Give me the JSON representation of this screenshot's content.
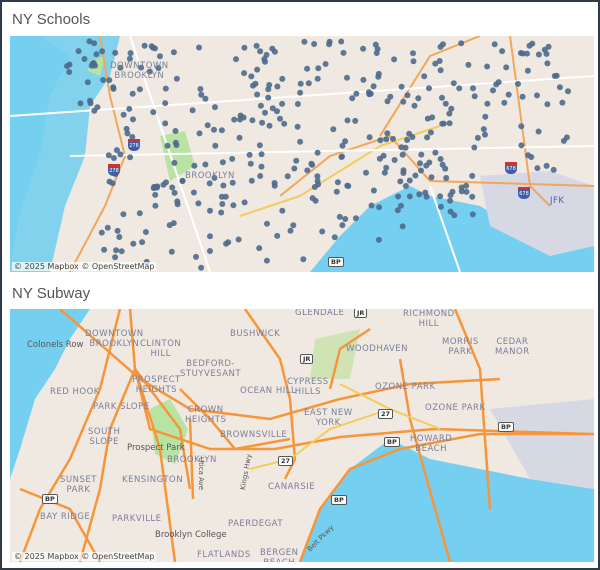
{
  "schools": {
    "title": "NY Schools",
    "attribution": "© 2025 Mapbox © OpenStreetMap",
    "marker_color": "#4d6a8c",
    "labels": {
      "downtown": "DOWNTOWN\nBROOKLYN",
      "brooklyn": "BROOKLYN",
      "jfk": "JFK"
    },
    "shields": {
      "i278": "278",
      "i678": "678",
      "bp": "BP"
    }
  },
  "subway": {
    "title": "NY Subway",
    "attribution": "© 2025 Mapbox © OpenStreetMap",
    "line_color": "#f7953b",
    "labels": {
      "glendale": "GLENDALE",
      "richmond_hill": "RICHMOND\nHILL",
      "bushwick": "BUSHWICK",
      "downtown": "DOWNTOWN\nBROOKLYN",
      "colonels_row": "Colonels Row",
      "clinton_hill": "CLINTON\nHILL",
      "woodhaven": "WOODHAVEN",
      "morris_park": "MORRIS\nPARK",
      "cedar_manor": "CEDAR\nMANOR",
      "bed_stuy": "BEDFORD-\nSTUYVESANT",
      "prospect_heights": "PROSPECT\nHEIGHTS",
      "cypress_hills": "CYPRESS\nHILLS",
      "ocean_hill": "OCEAN HILL",
      "ozone_park_1": "OZONE PARK",
      "red_hook": "RED HOOK",
      "ozone_park_2": "OZONE PARK",
      "park_slope": "PARK SLOPE",
      "crown_heights": "CROWN\nHEIGHTS",
      "east_new_york": "EAST NEW\nYORK",
      "south_slope": "SOUTH\nSLOPE",
      "brownsville": "BROWNSVILLE",
      "howard_beach": "HOWARD\nBEACH",
      "prospect_park": "Prospect Park",
      "brooklyn": "BROOKLYN",
      "utica_ave": "Utica Ave",
      "kings_hwy": "Kings Hwy",
      "sunset_park": "SUNSET\nPARK",
      "kensington": "KENSINGTON",
      "canarsie": "CANARSIE",
      "bay_ridge": "BAY RIDGE",
      "parkville": "PARKVILLE",
      "brooklyn_college": "Brooklyn College",
      "paerdegat": "PAERDEGAT",
      "belt_pkwy": "Belt Pkwy",
      "flatlands": "FLATLANDS",
      "bergen_beach": "BERGEN\nBEACH"
    },
    "shields": {
      "jr": "JR",
      "r27": "27",
      "bp": "BP"
    }
  }
}
